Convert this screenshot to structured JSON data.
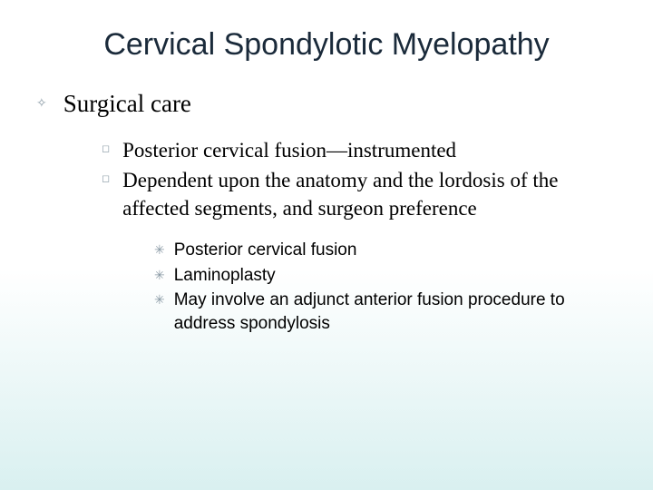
{
  "title": {
    "text": "Cervical Spondylotic Myelopathy",
    "fontsize": 34,
    "color": "#1a2a3a",
    "font_family": "Arial"
  },
  "section": {
    "heading": "Surgical care",
    "heading_fontsize": 27,
    "heading_color": "#000000",
    "heading_font_family": "Georgia",
    "bullet_color": "#8a9aa5"
  },
  "level2": {
    "fontsize": 23,
    "color": "#000000",
    "font_family": "Georgia",
    "bullet_color": "#8a9aa5",
    "items": [
      "Posterior cervical fusion—instrumented",
      "Dependent upon the anatomy and the lordosis of the affected segments, and surgeon preference"
    ]
  },
  "level3": {
    "fontsize": 19,
    "color": "#000000",
    "font_family": "Arial",
    "bullet_color": "#8a9aa5",
    "items": [
      "Posterior cervical fusion",
      "Laminoplasty",
      "May involve an adjunct anterior fusion procedure to address spondylosis"
    ]
  },
  "background": {
    "gradient_top": "#ffffff",
    "gradient_bottom": "#d9f0f0"
  }
}
